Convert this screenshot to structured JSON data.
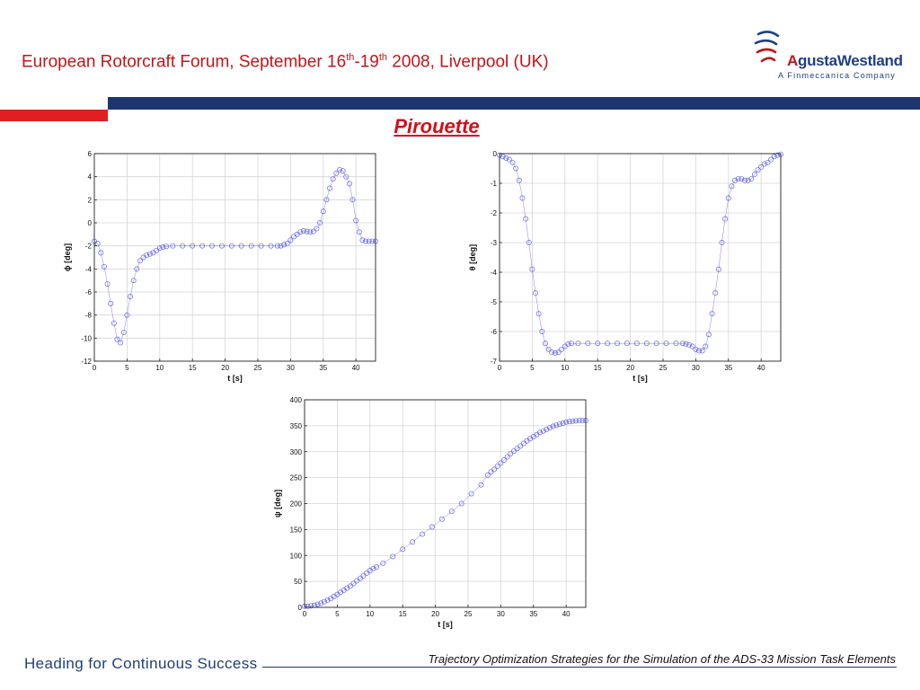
{
  "header": {
    "title_prefix": "European Rotorcraft Forum, September 16",
    "sup1": "th",
    "dash": "-19",
    "sup2": "th",
    "title_suffix": " 2008, Liverpool (UK)"
  },
  "logo": {
    "name_a": "A",
    "name_rest": "gustaWestland",
    "subtitle": "A Finmeccanica Company"
  },
  "slide_title": "Pirouette",
  "footer": {
    "slogan": "Heading for Continuous Success",
    "paper_title": "Trajectory Optimization Strategies for the Simulation of the ADS-33 Mission Task Elements"
  },
  "colors": {
    "title_red": "#c0151c",
    "band_blue": "#1f3570",
    "marker": "#4a4ae0"
  },
  "chart_data": [
    {
      "type": "scatter",
      "title": "",
      "xlabel": "t [s]",
      "ylabel": "ϕ [deg]",
      "xlim": [
        0,
        43
      ],
      "ylim": [
        -12,
        6
      ],
      "xticks": [
        0,
        5,
        10,
        15,
        20,
        25,
        30,
        35,
        40
      ],
      "yticks": [
        -12,
        -10,
        -8,
        -6,
        -4,
        -2,
        0,
        2,
        4,
        6
      ],
      "grid": true,
      "series": [
        {
          "x": [
            0,
            0.5,
            1,
            1.5,
            2,
            2.5,
            3,
            3.5,
            4,
            4.5,
            5,
            5.5,
            6,
            6.5,
            7,
            7.5,
            8,
            8.5,
            9,
            9.5,
            10,
            10.5,
            11,
            12,
            13.5,
            15,
            16.5,
            18,
            19.5,
            21,
            22.5,
            24,
            25.5,
            27,
            28,
            28.5,
            29,
            29.5,
            30,
            30.5,
            31,
            31.5,
            32,
            32.5,
            33,
            33.5,
            34,
            34.5,
            35,
            35.5,
            36,
            36.5,
            37,
            37.5,
            38,
            38.5,
            39,
            39.5,
            40,
            40.5,
            41,
            41.5,
            42,
            42.5,
            43
          ],
          "y": [
            -1.6,
            -1.8,
            -2.6,
            -3.8,
            -5.3,
            -7,
            -8.7,
            -10.1,
            -10.4,
            -9.5,
            -8,
            -6.4,
            -5,
            -4,
            -3.3,
            -3,
            -2.8,
            -2.7,
            -2.6,
            -2.4,
            -2.2,
            -2.1,
            -2.05,
            -2,
            -2,
            -2,
            -2,
            -2,
            -2,
            -2,
            -2,
            -2,
            -2,
            -2,
            -2,
            -2,
            -1.9,
            -1.8,
            -1.5,
            -1.2,
            -1,
            -0.8,
            -0.7,
            -0.75,
            -0.8,
            -0.75,
            -0.5,
            0,
            1,
            2,
            3,
            3.8,
            4.3,
            4.6,
            4.5,
            4,
            3.4,
            2,
            0.2,
            -0.8,
            -1.5,
            -1.6,
            -1.6,
            -1.6,
            -1.6
          ]
        }
      ]
    },
    {
      "type": "scatter",
      "title": "",
      "xlabel": "t [s]",
      "ylabel": "θ [deg]",
      "xlim": [
        0,
        43
      ],
      "ylim": [
        -7,
        0
      ],
      "xticks": [
        0,
        5,
        10,
        15,
        20,
        25,
        30,
        35,
        40
      ],
      "yticks": [
        -7,
        -6,
        -5,
        -4,
        -3,
        -2,
        -1,
        0
      ],
      "grid": true,
      "series": [
        {
          "x": [
            0,
            0.5,
            1,
            1.5,
            2,
            2.5,
            3,
            3.5,
            4,
            4.5,
            5,
            5.5,
            6,
            6.5,
            7,
            7.5,
            8,
            8.5,
            9,
            9.5,
            10,
            10.5,
            11,
            12,
            13.5,
            15,
            16.5,
            18,
            19.5,
            21,
            22.5,
            24,
            25.5,
            27,
            28,
            28.5,
            29,
            29.5,
            30,
            30.5,
            31,
            31.5,
            32,
            32.5,
            33,
            33.5,
            34,
            34.5,
            35,
            35.5,
            36,
            36.5,
            37,
            37.5,
            38,
            38.5,
            39,
            39.5,
            40,
            40.5,
            41,
            41.5,
            42,
            42.5,
            43
          ],
          "y": [
            -0.05,
            -0.1,
            -0.15,
            -0.2,
            -0.3,
            -0.5,
            -0.9,
            -1.5,
            -2.2,
            -3,
            -3.9,
            -4.7,
            -5.4,
            -6,
            -6.4,
            -6.6,
            -6.7,
            -6.72,
            -6.7,
            -6.6,
            -6.5,
            -6.42,
            -6.4,
            -6.4,
            -6.4,
            -6.4,
            -6.4,
            -6.4,
            -6.4,
            -6.4,
            -6.4,
            -6.4,
            -6.4,
            -6.4,
            -6.4,
            -6.42,
            -6.45,
            -6.5,
            -6.6,
            -6.65,
            -6.65,
            -6.5,
            -6.1,
            -5.4,
            -4.7,
            -3.9,
            -3,
            -2.2,
            -1.5,
            -1.1,
            -0.9,
            -0.85,
            -0.85,
            -0.9,
            -0.9,
            -0.85,
            -0.7,
            -0.55,
            -0.45,
            -0.35,
            -0.3,
            -0.2,
            -0.1,
            -0.05,
            -0.02
          ]
        }
      ]
    },
    {
      "type": "scatter",
      "title": "",
      "xlabel": "t [s]",
      "ylabel": "ψ [deg]",
      "xlim": [
        0,
        43
      ],
      "ylim": [
        0,
        400
      ],
      "xticks": [
        0,
        5,
        10,
        15,
        20,
        25,
        30,
        35,
        40
      ],
      "yticks": [
        0,
        50,
        100,
        150,
        200,
        250,
        300,
        350,
        400
      ],
      "grid": true,
      "series": [
        {
          "x": [
            0,
            0.5,
            1,
            1.5,
            2,
            2.5,
            3,
            3.5,
            4,
            4.5,
            5,
            5.5,
            6,
            6.5,
            7,
            7.5,
            8,
            8.5,
            9,
            9.5,
            10,
            10.5,
            11,
            12,
            13.5,
            15,
            16.5,
            18,
            19.5,
            21,
            22.5,
            24,
            25.5,
            27,
            28,
            28.5,
            29,
            29.5,
            30,
            30.5,
            31,
            31.5,
            32,
            32.5,
            33,
            33.5,
            34,
            34.5,
            35,
            35.5,
            36,
            36.5,
            37,
            37.5,
            38,
            38.5,
            39,
            39.5,
            40,
            40.5,
            41,
            41.5,
            42,
            42.5,
            43
          ],
          "y": [
            2,
            2,
            3,
            4,
            6,
            8,
            11,
            14,
            17,
            21,
            25,
            29,
            33,
            37,
            41,
            46,
            51,
            56,
            61,
            66,
            71,
            75,
            78,
            85,
            98,
            112,
            126,
            141,
            155,
            170,
            185,
            200,
            219,
            236,
            255,
            261,
            266,
            272,
            278,
            284,
            290,
            296,
            301,
            306,
            311,
            316,
            321,
            325,
            329,
            333,
            337,
            340,
            343,
            346,
            349,
            351,
            353,
            355,
            357,
            358,
            359,
            359.5,
            360,
            360,
            360
          ]
        }
      ]
    }
  ]
}
